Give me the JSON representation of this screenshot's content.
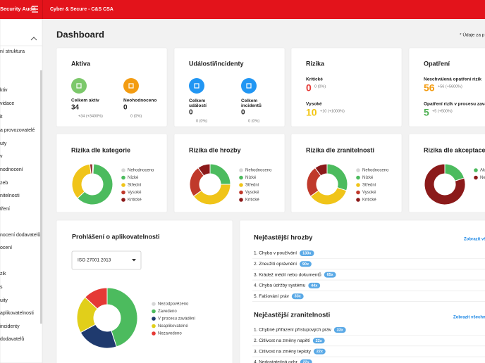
{
  "topbar": {
    "app": "Security Audit",
    "org": "Cyber & Secure - C&S CSA"
  },
  "sidebar": {
    "items": [
      "ní struktura",
      "ktiv",
      "vidace",
      "it",
      "a provozovatelé",
      "uty",
      "v",
      "nodnocení",
      "zeb",
      "nitelnosti",
      "tření",
      "nocení dodavatelů",
      "ocení",
      "zik",
      "s",
      "uity",
      "aplikovatelnosti",
      "incidenty",
      "dodavatelů"
    ]
  },
  "page": {
    "title": "Dashboard",
    "note": "* Údaje za p"
  },
  "cards": [
    {
      "title": "Aktiva",
      "style": "icons",
      "stats": [
        {
          "label": "Celkem aktiv",
          "value": "34",
          "change": "+34 (+3400%)",
          "color": "#7cc86b"
        },
        {
          "label": "Neohodnoceno",
          "value": "0",
          "change": "0 (0%)",
          "color": "#f39c12"
        }
      ]
    },
    {
      "title": "Události/incidenty",
      "style": "icons",
      "stats": [
        {
          "label": "Celkem událostí",
          "value": "0",
          "change": "0 (0%)",
          "color": "#2196f3"
        },
        {
          "label": "Celkem incidentů",
          "value": "0",
          "change": "0 (0%)",
          "color": "#2196f3"
        }
      ]
    },
    {
      "title": "Rizika",
      "style": "rows",
      "stats": [
        {
          "label": "Kritické",
          "value": "0",
          "change": "0 (0%)",
          "color": "#e53935"
        },
        {
          "label": "Vysoké",
          "value": "10",
          "change": "+10 (+1000%)",
          "color": "#f2c511"
        }
      ]
    },
    {
      "title": "Opatření",
      "style": "rows",
      "stats": [
        {
          "label": "Neschválená opatření rizik",
          "value": "56",
          "change": "+56 (+5600%)",
          "color": "#f39c12"
        },
        {
          "label": "Opatření rizik v procesu zavá",
          "value": "5",
          "change": "+5 (+500%)",
          "color": "#4caf50"
        }
      ]
    }
  ],
  "donut_cards": [
    {
      "title": "Rizika dle kategorie",
      "legend": [
        {
          "name": "Nehodnoceno",
          "color": "#d6d6d6",
          "value": 1
        },
        {
          "name": "Nízké",
          "color": "#4cbb5e",
          "value": 62
        },
        {
          "name": "Střední",
          "color": "#f0c419",
          "value": 35
        },
        {
          "name": "Vysoké",
          "color": "#c0392b",
          "value": 0
        },
        {
          "name": "Kritické",
          "color": "#8b1a1a",
          "value": 2
        }
      ]
    },
    {
      "title": "Rizika dle hrozby",
      "legend": [
        {
          "name": "Nehodnoceno",
          "color": "#d6d6d6",
          "value": 0
        },
        {
          "name": "Nízké",
          "color": "#4cbb5e",
          "value": 25
        },
        {
          "name": "Střední",
          "color": "#f0c419",
          "value": 40
        },
        {
          "name": "Vysoké",
          "color": "#c0392b",
          "value": 25
        },
        {
          "name": "Kritické",
          "color": "#8b1a1a",
          "value": 10
        }
      ]
    },
    {
      "title": "Rizika dle zranitelnosti",
      "legend": [
        {
          "name": "Nehodnoceno",
          "color": "#d6d6d6",
          "value": 0
        },
        {
          "name": "Nízké",
          "color": "#4cbb5e",
          "value": 30
        },
        {
          "name": "Střední",
          "color": "#f0c419",
          "value": 35
        },
        {
          "name": "Vysoké",
          "color": "#c0392b",
          "value": 25
        },
        {
          "name": "Kritické",
          "color": "#8b1a1a",
          "value": 10
        }
      ]
    },
    {
      "title": "Rizika dle akceptace",
      "legend": [
        {
          "name": "Akcept",
          "color": "#4cbb5e",
          "value": 20
        },
        {
          "name": "Neakce",
          "color": "#8b1a1a",
          "value": 80
        }
      ]
    }
  ],
  "applicability": {
    "title": "Prohlášení o aplikovatelnosti",
    "select": "ISO 27001 2013",
    "legend": [
      {
        "name": "Nezodpovězeno",
        "color": "#d6d6d6",
        "value": 0
      },
      {
        "name": "Zavedeno",
        "color": "#4cbb5e",
        "value": 45
      },
      {
        "name": "V procesu zavádění",
        "color": "#1f3a6e",
        "value": 22
      },
      {
        "name": "Neaplikovatelné",
        "color": "#e1cf1a",
        "value": 20
      },
      {
        "name": "Nezavedeno",
        "color": "#e53935",
        "value": 13
      }
    ]
  },
  "lists": [
    {
      "title": "Nejčastější hrozby",
      "link": "Zobrazit vš",
      "items": [
        {
          "name": "1. Chyba v používání",
          "count": "133x"
        },
        {
          "name": "2. Zneužití oprávnění",
          "count": "90x"
        },
        {
          "name": "3. Krádež médií nebo dokumentů",
          "count": "65x"
        },
        {
          "name": "4. Chyba údržby systému",
          "count": "44x"
        },
        {
          "name": "5. Falšování práv",
          "count": "33x"
        }
      ]
    },
    {
      "title": "Nejčastější zranitelnosti",
      "link": "Zobrazit všechny",
      "items": [
        {
          "name": "1. Chybné přiřazení přístupových práv",
          "count": "33x"
        },
        {
          "name": "2. Citlivost na změny napětí",
          "count": "22x"
        },
        {
          "name": "3. Citlivost na změny teploty",
          "count": "22x"
        },
        {
          "name": "4. Nedostatečná ochr",
          "count": "22x"
        }
      ]
    }
  ]
}
